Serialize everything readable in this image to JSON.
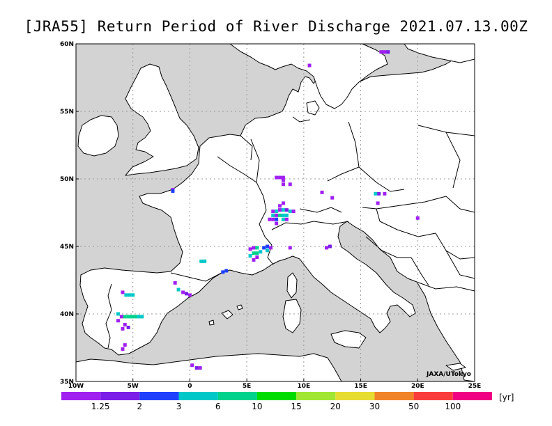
{
  "title": "[JRA55] Return Period of River Discharge 2021.07.13.00Z",
  "credit": "JAXA/UTokyo",
  "map": {
    "lon_range": [
      -10,
      25
    ],
    "lat_range": [
      35,
      60
    ],
    "lat_labels": [
      "60N",
      "55N",
      "50N",
      "45N",
      "40N",
      "35N"
    ],
    "lon_labels": [
      "10W",
      "5W",
      "0",
      "5E",
      "10E",
      "15E",
      "20E",
      "25E"
    ],
    "lat_lines": [
      40,
      45,
      50,
      55
    ],
    "lon_lines": [
      -5,
      0,
      5,
      10,
      15,
      20
    ],
    "colors": {
      "sea": "#d3d3d3",
      "land": "#ffffff",
      "coast": "#000000",
      "grid": "#999999"
    }
  },
  "legend": {
    "unit": "[yr]",
    "colors": [
      "#a020f0",
      "#7a1ee8",
      "#2040ff",
      "#00c8c8",
      "#00d28c",
      "#00dc00",
      "#a0e632",
      "#e6dc32",
      "#f08228",
      "#fa3c3c",
      "#f00082"
    ],
    "labels": [
      "1.25",
      "2",
      "3",
      "6",
      "10",
      "15",
      "20",
      "30",
      "50",
      "100"
    ]
  },
  "markers": [
    {
      "lon": -1.5,
      "lat": 49.2,
      "c": 0
    },
    {
      "lon": -1.5,
      "lat": 49.1,
      "c": 2
    },
    {
      "lon": 1.0,
      "lat": 43.9,
      "c": 3
    },
    {
      "lon": 1.3,
      "lat": 43.9,
      "c": 3
    },
    {
      "lon": 2.9,
      "lat": 43.1,
      "c": 2
    },
    {
      "lon": 3.2,
      "lat": 43.2,
      "c": 2
    },
    {
      "lon": -1.3,
      "lat": 42.3,
      "c": 0
    },
    {
      "lon": -1.0,
      "lat": 41.8,
      "c": 3
    },
    {
      "lon": -0.6,
      "lat": 41.6,
      "c": 0
    },
    {
      "lon": -0.3,
      "lat": 41.5,
      "c": 1
    },
    {
      "lon": 0.0,
      "lat": 41.4,
      "c": 0
    },
    {
      "lon": -5.9,
      "lat": 41.6,
      "c": 0
    },
    {
      "lon": -5.6,
      "lat": 41.4,
      "c": 3
    },
    {
      "lon": -5.3,
      "lat": 41.4,
      "c": 3
    },
    {
      "lon": -5.0,
      "lat": 41.4,
      "c": 3
    },
    {
      "lon": -6.3,
      "lat": 40.0,
      "c": 3
    },
    {
      "lon": -6.0,
      "lat": 39.8,
      "c": 0
    },
    {
      "lon": -5.7,
      "lat": 39.8,
      "c": 4
    },
    {
      "lon": -5.4,
      "lat": 39.8,
      "c": 4
    },
    {
      "lon": -5.1,
      "lat": 39.8,
      "c": 4
    },
    {
      "lon": -4.8,
      "lat": 39.8,
      "c": 4
    },
    {
      "lon": -4.5,
      "lat": 39.8,
      "c": 3
    },
    {
      "lon": -4.2,
      "lat": 39.8,
      "c": 3
    },
    {
      "lon": -6.3,
      "lat": 39.5,
      "c": 0
    },
    {
      "lon": -5.7,
      "lat": 39.2,
      "c": 0
    },
    {
      "lon": -5.4,
      "lat": 39.0,
      "c": 1
    },
    {
      "lon": -5.9,
      "lat": 38.9,
      "c": 0
    },
    {
      "lon": -5.7,
      "lat": 37.7,
      "c": 0
    },
    {
      "lon": -5.9,
      "lat": 37.4,
      "c": 0
    },
    {
      "lon": 0.2,
      "lat": 36.2,
      "c": 0
    },
    {
      "lon": 0.6,
      "lat": 36.0,
      "c": 1
    },
    {
      "lon": 0.9,
      "lat": 36.0,
      "c": 0
    },
    {
      "lon": 5.3,
      "lat": 44.8,
      "c": 0
    },
    {
      "lon": 5.3,
      "lat": 44.3,
      "c": 3
    },
    {
      "lon": 5.6,
      "lat": 44.5,
      "c": 4
    },
    {
      "lon": 5.9,
      "lat": 44.5,
      "c": 4
    },
    {
      "lon": 6.2,
      "lat": 44.6,
      "c": 3
    },
    {
      "lon": 5.6,
      "lat": 44.9,
      "c": 0
    },
    {
      "lon": 5.9,
      "lat": 44.9,
      "c": 4
    },
    {
      "lon": 5.9,
      "lat": 44.2,
      "c": 0
    },
    {
      "lon": 5.6,
      "lat": 44.0,
      "c": 0
    },
    {
      "lon": 6.5,
      "lat": 44.9,
      "c": 2
    },
    {
      "lon": 6.8,
      "lat": 45.0,
      "c": 2
    },
    {
      "lon": 6.8,
      "lat": 44.7,
      "c": 3
    },
    {
      "lon": 7.1,
      "lat": 44.9,
      "c": 0
    },
    {
      "lon": 7.3,
      "lat": 47.6,
      "c": 0
    },
    {
      "lon": 7.6,
      "lat": 47.6,
      "c": 3
    },
    {
      "lon": 7.9,
      "lat": 47.7,
      "c": 0
    },
    {
      "lon": 8.2,
      "lat": 47.7,
      "c": 3
    },
    {
      "lon": 8.5,
      "lat": 47.7,
      "c": 1
    },
    {
      "lon": 8.8,
      "lat": 47.6,
      "c": 3
    },
    {
      "lon": 9.1,
      "lat": 47.6,
      "c": 0
    },
    {
      "lon": 7.3,
      "lat": 47.3,
      "c": 3
    },
    {
      "lon": 7.6,
      "lat": 47.3,
      "c": 0
    },
    {
      "lon": 7.9,
      "lat": 47.3,
      "c": 4
    },
    {
      "lon": 8.2,
      "lat": 47.3,
      "c": 3
    },
    {
      "lon": 8.5,
      "lat": 47.3,
      "c": 3
    },
    {
      "lon": 7.0,
      "lat": 47.0,
      "c": 0
    },
    {
      "lon": 7.3,
      "lat": 47.0,
      "c": 0
    },
    {
      "lon": 7.6,
      "lat": 47.0,
      "c": 2
    },
    {
      "lon": 8.2,
      "lat": 47.0,
      "c": 3
    },
    {
      "lon": 7.6,
      "lat": 46.7,
      "c": 0
    },
    {
      "lon": 8.5,
      "lat": 47.0,
      "c": 0
    },
    {
      "lon": 7.9,
      "lat": 48.0,
      "c": 0
    },
    {
      "lon": 8.2,
      "lat": 48.2,
      "c": 0
    },
    {
      "lon": 7.6,
      "lat": 50.1,
      "c": 0
    },
    {
      "lon": 7.9,
      "lat": 50.1,
      "c": 0
    },
    {
      "lon": 8.2,
      "lat": 50.1,
      "c": 0
    },
    {
      "lon": 8.2,
      "lat": 49.9,
      "c": 0
    },
    {
      "lon": 8.2,
      "lat": 49.6,
      "c": 0
    },
    {
      "lon": 8.8,
      "lat": 49.6,
      "c": 0
    },
    {
      "lon": 11.6,
      "lat": 49.0,
      "c": 0
    },
    {
      "lon": 12.5,
      "lat": 48.6,
      "c": 0
    },
    {
      "lon": 16.3,
      "lat": 48.9,
      "c": 3
    },
    {
      "lon": 16.6,
      "lat": 48.9,
      "c": 1
    },
    {
      "lon": 17.1,
      "lat": 48.9,
      "c": 0
    },
    {
      "lon": 16.5,
      "lat": 48.2,
      "c": 0
    },
    {
      "lon": 20.0,
      "lat": 47.1,
      "c": 0
    },
    {
      "lon": 8.8,
      "lat": 44.9,
      "c": 0
    },
    {
      "lon": 12.0,
      "lat": 44.9,
      "c": 0
    },
    {
      "lon": 12.3,
      "lat": 45.0,
      "c": 1
    },
    {
      "lon": 10.5,
      "lat": 58.4,
      "c": 0
    },
    {
      "lon": 16.8,
      "lat": 59.4,
      "c": 0
    },
    {
      "lon": 17.1,
      "lat": 59.4,
      "c": 0
    },
    {
      "lon": 17.4,
      "lat": 59.4,
      "c": 1
    }
  ]
}
